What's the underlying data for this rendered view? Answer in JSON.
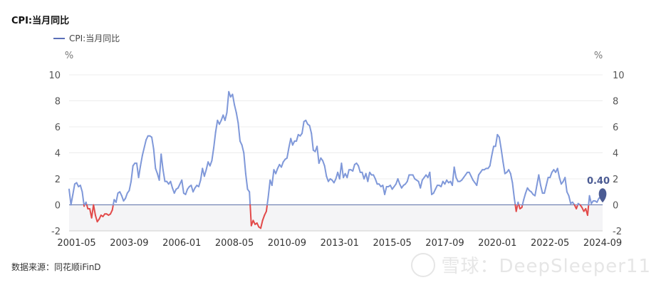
{
  "title": "CPI:当月同比",
  "source": "数据来源：同花顺iFinD",
  "watermark": "雪球：DeepSleeper11",
  "colors": {
    "line": "#7f98d9",
    "negative": "#e24a4a",
    "neg_band": "#f4f4f6",
    "marker": "#4b5b93",
    "zero": "#5b6fa8"
  },
  "chart_data": {
    "type": "line",
    "title": "CPI:当月同比",
    "legend": [
      "CPI:当月同比"
    ],
    "legend_position": "top-left",
    "y_unit_left": "%",
    "y_unit_right": "%",
    "ylim": [
      -2,
      10
    ],
    "yticks": [
      -2,
      0,
      2,
      4,
      6,
      8,
      10
    ],
    "xtick_labels": [
      "2001-05",
      "2003-09",
      "2006-01",
      "2008-05",
      "2010-09",
      "2013-01",
      "2015-05",
      "2017-09",
      "2020-01",
      "2022-05",
      "2024-09"
    ],
    "xrange": [
      "2001-01",
      "2024-09"
    ],
    "grid": true,
    "end_label": "0.40",
    "series": [
      {
        "name": "CPI:当月同比",
        "points": [
          [
            "2001-01",
            1.2
          ],
          [
            "2001-02",
            0.0
          ],
          [
            "2001-03",
            0.8
          ],
          [
            "2001-04",
            1.6
          ],
          [
            "2001-05",
            1.7
          ],
          [
            "2001-06",
            1.4
          ],
          [
            "2001-07",
            1.5
          ],
          [
            "2001-08",
            1.0
          ],
          [
            "2001-09",
            -0.1
          ],
          [
            "2001-10",
            0.2
          ],
          [
            "2001-11",
            -0.3
          ],
          [
            "2001-12",
            -0.3
          ],
          [
            "2002-01",
            -1.0
          ],
          [
            "2002-02",
            0.0
          ],
          [
            "2002-03",
            -0.8
          ],
          [
            "2002-04",
            -1.3
          ],
          [
            "2002-05",
            -1.1
          ],
          [
            "2002-06",
            -0.8
          ],
          [
            "2002-07",
            -0.9
          ],
          [
            "2002-08",
            -0.7
          ],
          [
            "2002-09",
            -0.7
          ],
          [
            "2002-10",
            -0.8
          ],
          [
            "2002-11",
            -0.7
          ],
          [
            "2002-12",
            -0.4
          ],
          [
            "2003-01",
            0.4
          ],
          [
            "2003-02",
            0.2
          ],
          [
            "2003-03",
            0.9
          ],
          [
            "2003-04",
            1.0
          ],
          [
            "2003-05",
            0.7
          ],
          [
            "2003-06",
            0.3
          ],
          [
            "2003-07",
            0.5
          ],
          [
            "2003-08",
            0.9
          ],
          [
            "2003-09",
            1.1
          ],
          [
            "2003-10",
            1.8
          ],
          [
            "2003-11",
            3.0
          ],
          [
            "2003-12",
            3.2
          ],
          [
            "2004-01",
            3.2
          ],
          [
            "2004-02",
            2.1
          ],
          [
            "2004-03",
            3.0
          ],
          [
            "2004-04",
            3.8
          ],
          [
            "2004-05",
            4.4
          ],
          [
            "2004-06",
            5.0
          ],
          [
            "2004-07",
            5.3
          ],
          [
            "2004-08",
            5.3
          ],
          [
            "2004-09",
            5.2
          ],
          [
            "2004-10",
            4.3
          ],
          [
            "2004-11",
            2.8
          ],
          [
            "2004-12",
            2.4
          ],
          [
            "2005-01",
            1.9
          ],
          [
            "2005-02",
            3.9
          ],
          [
            "2005-03",
            2.7
          ],
          [
            "2005-04",
            1.8
          ],
          [
            "2005-05",
            1.8
          ],
          [
            "2005-06",
            1.6
          ],
          [
            "2005-07",
            1.8
          ],
          [
            "2005-08",
            1.3
          ],
          [
            "2005-09",
            0.9
          ],
          [
            "2005-10",
            1.2
          ],
          [
            "2005-11",
            1.3
          ],
          [
            "2005-12",
            1.6
          ],
          [
            "2006-01",
            1.9
          ],
          [
            "2006-02",
            0.9
          ],
          [
            "2006-03",
            0.8
          ],
          [
            "2006-04",
            1.2
          ],
          [
            "2006-05",
            1.4
          ],
          [
            "2006-06",
            1.5
          ],
          [
            "2006-07",
            1.0
          ],
          [
            "2006-08",
            1.3
          ],
          [
            "2006-09",
            1.5
          ],
          [
            "2006-10",
            1.4
          ],
          [
            "2006-11",
            1.9
          ],
          [
            "2006-12",
            2.8
          ],
          [
            "2007-01",
            2.2
          ],
          [
            "2007-02",
            2.7
          ],
          [
            "2007-03",
            3.3
          ],
          [
            "2007-04",
            3.0
          ],
          [
            "2007-05",
            3.4
          ],
          [
            "2007-06",
            4.4
          ],
          [
            "2007-07",
            5.6
          ],
          [
            "2007-08",
            6.5
          ],
          [
            "2007-09",
            6.2
          ],
          [
            "2007-10",
            6.5
          ],
          [
            "2007-11",
            6.9
          ],
          [
            "2007-12",
            6.5
          ],
          [
            "2008-01",
            7.1
          ],
          [
            "2008-02",
            8.7
          ],
          [
            "2008-03",
            8.3
          ],
          [
            "2008-04",
            8.5
          ],
          [
            "2008-05",
            7.7
          ],
          [
            "2008-06",
            7.1
          ],
          [
            "2008-07",
            6.3
          ],
          [
            "2008-08",
            4.9
          ],
          [
            "2008-09",
            4.6
          ],
          [
            "2008-10",
            4.0
          ],
          [
            "2008-11",
            2.4
          ],
          [
            "2008-12",
            1.2
          ],
          [
            "2009-01",
            1.0
          ],
          [
            "2009-02",
            -1.6
          ],
          [
            "2009-03",
            -1.2
          ],
          [
            "2009-04",
            -1.5
          ],
          [
            "2009-05",
            -1.4
          ],
          [
            "2009-06",
            -1.7
          ],
          [
            "2009-07",
            -1.8
          ],
          [
            "2009-08",
            -1.2
          ],
          [
            "2009-09",
            -0.8
          ],
          [
            "2009-10",
            -0.5
          ],
          [
            "2009-11",
            0.6
          ],
          [
            "2009-12",
            1.9
          ],
          [
            "2010-01",
            1.5
          ],
          [
            "2010-02",
            2.7
          ],
          [
            "2010-03",
            2.4
          ],
          [
            "2010-04",
            2.8
          ],
          [
            "2010-05",
            3.1
          ],
          [
            "2010-06",
            2.9
          ],
          [
            "2010-07",
            3.3
          ],
          [
            "2010-08",
            3.5
          ],
          [
            "2010-09",
            3.6
          ],
          [
            "2010-10",
            4.4
          ],
          [
            "2010-11",
            5.1
          ],
          [
            "2010-12",
            4.6
          ],
          [
            "2011-01",
            4.9
          ],
          [
            "2011-02",
            4.9
          ],
          [
            "2011-03",
            5.4
          ],
          [
            "2011-04",
            5.3
          ],
          [
            "2011-05",
            5.5
          ],
          [
            "2011-06",
            6.4
          ],
          [
            "2011-07",
            6.5
          ],
          [
            "2011-08",
            6.2
          ],
          [
            "2011-09",
            6.1
          ],
          [
            "2011-10",
            5.5
          ],
          [
            "2011-11",
            4.2
          ],
          [
            "2011-12",
            4.1
          ],
          [
            "2012-01",
            4.5
          ],
          [
            "2012-02",
            3.2
          ],
          [
            "2012-03",
            3.6
          ],
          [
            "2012-04",
            3.4
          ],
          [
            "2012-05",
            3.0
          ],
          [
            "2012-06",
            2.2
          ],
          [
            "2012-07",
            1.8
          ],
          [
            "2012-08",
            2.0
          ],
          [
            "2012-09",
            1.9
          ],
          [
            "2012-10",
            1.7
          ],
          [
            "2012-11",
            2.0
          ],
          [
            "2012-12",
            2.5
          ],
          [
            "2013-01",
            2.0
          ],
          [
            "2013-02",
            3.2
          ],
          [
            "2013-03",
            2.1
          ],
          [
            "2013-04",
            2.4
          ],
          [
            "2013-05",
            2.1
          ],
          [
            "2013-06",
            2.7
          ],
          [
            "2013-07",
            2.7
          ],
          [
            "2013-08",
            2.6
          ],
          [
            "2013-09",
            3.1
          ],
          [
            "2013-10",
            3.2
          ],
          [
            "2013-11",
            3.0
          ],
          [
            "2013-12",
            2.5
          ],
          [
            "2014-01",
            2.5
          ],
          [
            "2014-02",
            2.0
          ],
          [
            "2014-03",
            2.4
          ],
          [
            "2014-04",
            1.8
          ],
          [
            "2014-05",
            2.5
          ],
          [
            "2014-06",
            2.3
          ],
          [
            "2014-07",
            2.3
          ],
          [
            "2014-08",
            2.0
          ],
          [
            "2014-09",
            1.6
          ],
          [
            "2014-10",
            1.6
          ],
          [
            "2014-11",
            1.4
          ],
          [
            "2014-12",
            1.5
          ],
          [
            "2015-01",
            0.8
          ],
          [
            "2015-02",
            1.4
          ],
          [
            "2015-03",
            1.4
          ],
          [
            "2015-04",
            1.5
          ],
          [
            "2015-05",
            1.2
          ],
          [
            "2015-06",
            1.4
          ],
          [
            "2015-07",
            1.6
          ],
          [
            "2015-08",
            2.0
          ],
          [
            "2015-09",
            1.6
          ],
          [
            "2015-10",
            1.3
          ],
          [
            "2015-11",
            1.5
          ],
          [
            "2015-12",
            1.6
          ],
          [
            "2016-01",
            1.8
          ],
          [
            "2016-02",
            2.3
          ],
          [
            "2016-03",
            2.3
          ],
          [
            "2016-04",
            2.3
          ],
          [
            "2016-05",
            2.0
          ],
          [
            "2016-06",
            1.9
          ],
          [
            "2016-07",
            1.8
          ],
          [
            "2016-08",
            1.3
          ],
          [
            "2016-09",
            1.9
          ],
          [
            "2016-10",
            2.1
          ],
          [
            "2016-11",
            2.3
          ],
          [
            "2016-12",
            2.1
          ],
          [
            "2017-01",
            2.5
          ],
          [
            "2017-02",
            0.8
          ],
          [
            "2017-03",
            0.9
          ],
          [
            "2017-04",
            1.2
          ],
          [
            "2017-05",
            1.5
          ],
          [
            "2017-06",
            1.5
          ],
          [
            "2017-07",
            1.4
          ],
          [
            "2017-08",
            1.8
          ],
          [
            "2017-09",
            1.6
          ],
          [
            "2017-10",
            1.9
          ],
          [
            "2017-11",
            1.7
          ],
          [
            "2017-12",
            1.8
          ],
          [
            "2018-01",
            1.5
          ],
          [
            "2018-02",
            2.9
          ],
          [
            "2018-03",
            2.1
          ],
          [
            "2018-04",
            1.8
          ],
          [
            "2018-05",
            1.8
          ],
          [
            "2018-06",
            1.9
          ],
          [
            "2018-07",
            2.1
          ],
          [
            "2018-08",
            2.3
          ],
          [
            "2018-09",
            2.5
          ],
          [
            "2018-10",
            2.5
          ],
          [
            "2018-11",
            2.2
          ],
          [
            "2018-12",
            1.9
          ],
          [
            "2019-01",
            1.7
          ],
          [
            "2019-02",
            1.5
          ],
          [
            "2019-03",
            2.3
          ],
          [
            "2019-04",
            2.5
          ],
          [
            "2019-05",
            2.7
          ],
          [
            "2019-06",
            2.7
          ],
          [
            "2019-07",
            2.8
          ],
          [
            "2019-08",
            2.8
          ],
          [
            "2019-09",
            3.0
          ],
          [
            "2019-10",
            3.8
          ],
          [
            "2019-11",
            4.5
          ],
          [
            "2019-12",
            4.5
          ],
          [
            "2020-01",
            5.4
          ],
          [
            "2020-02",
            5.2
          ],
          [
            "2020-03",
            4.3
          ],
          [
            "2020-04",
            3.3
          ],
          [
            "2020-05",
            2.4
          ],
          [
            "2020-06",
            2.5
          ],
          [
            "2020-07",
            2.7
          ],
          [
            "2020-08",
            2.4
          ],
          [
            "2020-09",
            1.7
          ],
          [
            "2020-10",
            0.5
          ],
          [
            "2020-11",
            -0.5
          ],
          [
            "2020-12",
            0.2
          ],
          [
            "2021-01",
            -0.3
          ],
          [
            "2021-02",
            -0.2
          ],
          [
            "2021-03",
            0.4
          ],
          [
            "2021-04",
            0.9
          ],
          [
            "2021-05",
            1.3
          ],
          [
            "2021-06",
            1.1
          ],
          [
            "2021-07",
            1.0
          ],
          [
            "2021-08",
            0.8
          ],
          [
            "2021-09",
            0.7
          ],
          [
            "2021-10",
            1.5
          ],
          [
            "2021-11",
            2.3
          ],
          [
            "2021-12",
            1.5
          ],
          [
            "2022-01",
            0.9
          ],
          [
            "2022-02",
            0.9
          ],
          [
            "2022-03",
            1.5
          ],
          [
            "2022-04",
            2.1
          ],
          [
            "2022-05",
            2.1
          ],
          [
            "2022-06",
            2.5
          ],
          [
            "2022-07",
            2.7
          ],
          [
            "2022-08",
            2.5
          ],
          [
            "2022-09",
            2.8
          ],
          [
            "2022-10",
            2.1
          ],
          [
            "2022-11",
            1.6
          ],
          [
            "2022-12",
            1.8
          ],
          [
            "2023-01",
            2.1
          ],
          [
            "2023-02",
            1.0
          ],
          [
            "2023-03",
            0.7
          ],
          [
            "2023-04",
            0.1
          ],
          [
            "2023-05",
            0.2
          ],
          [
            "2023-06",
            0.0
          ],
          [
            "2023-07",
            -0.3
          ],
          [
            "2023-08",
            0.1
          ],
          [
            "2023-09",
            0.0
          ],
          [
            "2023-10",
            -0.2
          ],
          [
            "2023-11",
            -0.5
          ],
          [
            "2023-12",
            -0.3
          ],
          [
            "2024-01",
            -0.8
          ],
          [
            "2024-02",
            0.7
          ],
          [
            "2024-03",
            0.1
          ],
          [
            "2024-04",
            0.3
          ],
          [
            "2024-05",
            0.3
          ],
          [
            "2024-06",
            0.2
          ],
          [
            "2024-07",
            0.5
          ],
          [
            "2024-08",
            0.6
          ],
          [
            "2024-09",
            0.4
          ]
        ]
      }
    ]
  }
}
